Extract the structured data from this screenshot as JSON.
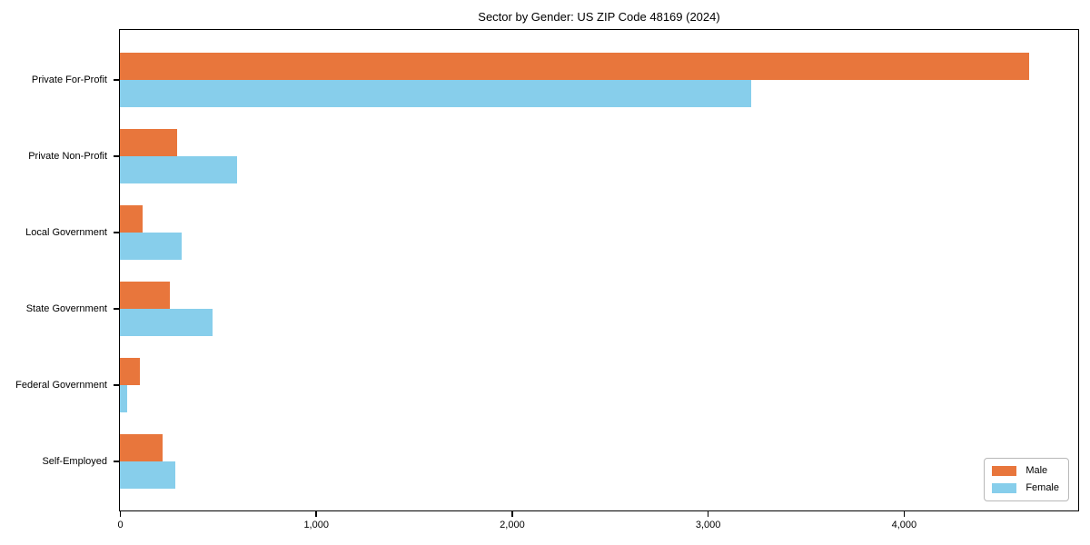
{
  "chart_data": {
    "type": "bar",
    "orientation": "horizontal",
    "title": "Sector by Gender: US ZIP Code 48169 (2024)",
    "categories": [
      "Private For-Profit",
      "Private Non-Profit",
      "Local Government",
      "State Government",
      "Federal Government",
      "Self-Employed"
    ],
    "series": [
      {
        "name": "Male",
        "color": "#E8763C",
        "values": [
          4640,
          290,
          115,
          255,
          100,
          220
        ]
      },
      {
        "name": "Female",
        "color": "#87CEEB",
        "values": [
          3220,
          600,
          315,
          475,
          35,
          285
        ]
      }
    ],
    "xlabel": "",
    "ylabel": "",
    "xlim": [
      0,
      4886
    ],
    "xticks": [
      0,
      1000,
      2000,
      3000,
      4000
    ],
    "xtick_labels": [
      "0",
      "1,000",
      "2,000",
      "3,000",
      "4,000"
    ],
    "grid": false,
    "legend_position": "lower right",
    "background_color": "#ffffff",
    "spine_color": "#000000"
  }
}
